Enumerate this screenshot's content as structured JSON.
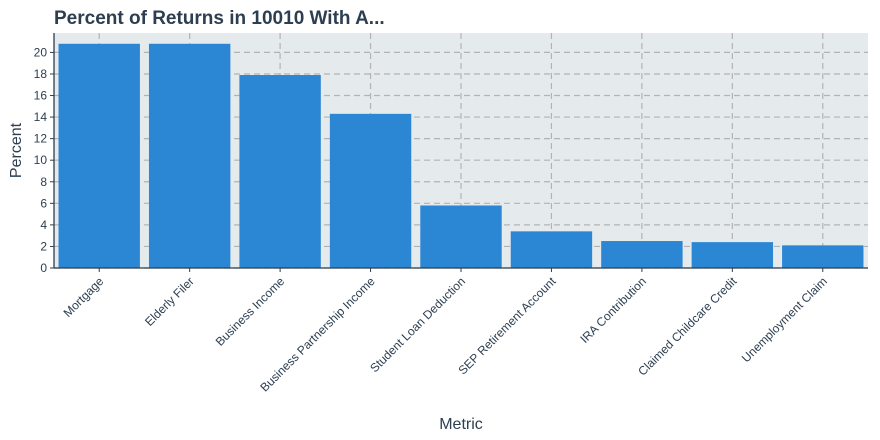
{
  "chart_data": {
    "type": "bar",
    "title": "Percent of Returns in 10010 With A...",
    "xlabel": "Metric",
    "ylabel": "Percent",
    "categories": [
      "Mortgage",
      "Elderly Filer",
      "Business Income",
      "Business Partnership Income",
      "Student Loan Deduction",
      "SEP Retirement Account",
      "IRA Contribution",
      "Claimed Childcare Credit",
      "Unemployment Claim"
    ],
    "values": [
      20.8,
      20.8,
      17.9,
      14.3,
      5.8,
      3.4,
      2.5,
      2.4,
      2.1
    ],
    "ylim": [
      0,
      21.8
    ],
    "yticks": [
      0,
      2,
      4,
      6,
      8,
      10,
      12,
      14,
      16,
      18,
      20
    ],
    "grid": true,
    "legend": "none",
    "colors": {
      "bar": "#2b86d4",
      "panel": "#e5eaec",
      "grid": "#b3b3b3",
      "axis": "#2c3e50",
      "text": "#2c3e50"
    }
  }
}
